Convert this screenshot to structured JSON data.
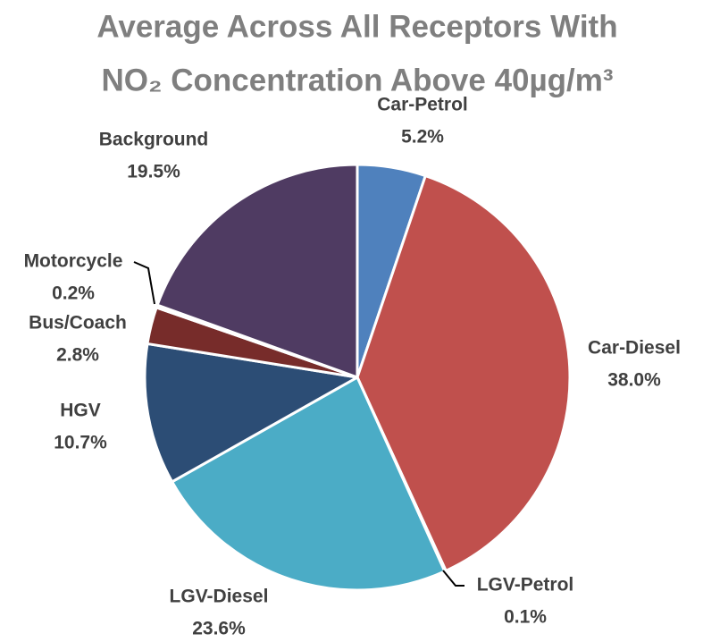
{
  "chart_data": {
    "type": "pie",
    "title": [
      "Average Across All Receptors With",
      "NO₂ Concentration Above 40µg/m³"
    ],
    "categories": [
      "Car-Petrol",
      "Car-Diesel",
      "LGV-Petrol",
      "LGV-Diesel",
      "HGV",
      "Bus/Coach",
      "Motorcycle",
      "Background"
    ],
    "values": [
      5.2,
      38.0,
      0.1,
      23.6,
      10.7,
      2.8,
      0.2,
      19.5
    ],
    "value_labels": [
      "5.2%",
      "38.0%",
      "0.1%",
      "23.6%",
      "10.7%",
      "2.8%",
      "0.2%",
      "19.5%"
    ],
    "colors": [
      "#4f81bd",
      "#c0504d",
      "#9bbb59",
      "#4bacc6",
      "#2c4d75",
      "#772c2a",
      "#5f7530",
      "#4f3b62"
    ]
  }
}
